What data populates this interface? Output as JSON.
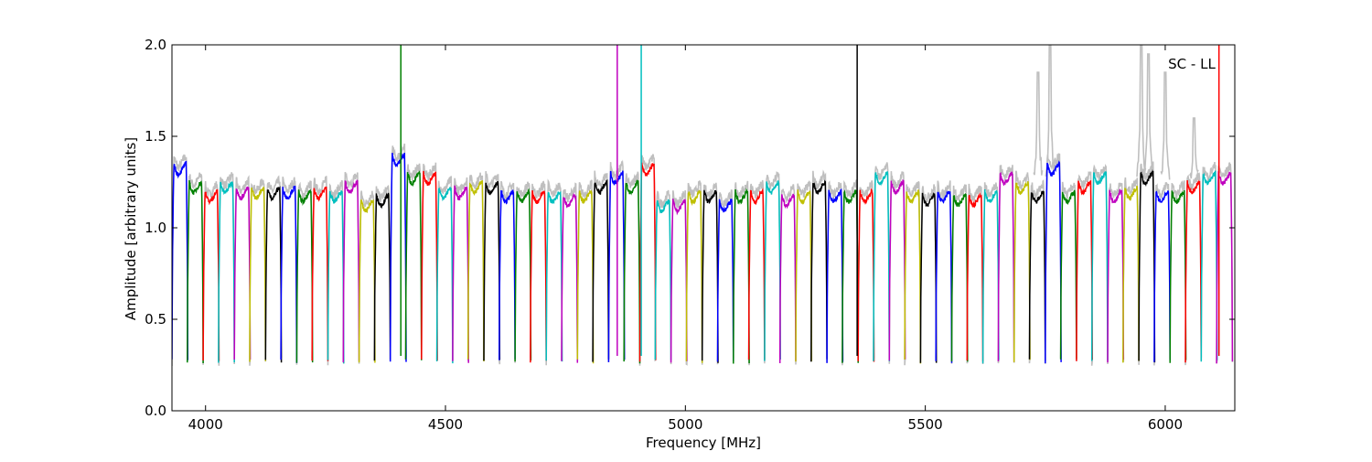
{
  "chart_data": {
    "type": "line",
    "annotation": "SC - LL",
    "xlabel": "Frequency [MHz]",
    "ylabel": "Amplitude [arbitrary units]",
    "xlim": [
      3930,
      6145
    ],
    "ylim": [
      0.0,
      2.0
    ],
    "x_ticks": [
      4000,
      4500,
      5000,
      5500,
      6000
    ],
    "y_ticks": [
      0.0,
      0.5,
      1.0,
      1.5,
      2.0
    ],
    "x_tick_labels": [
      "4000",
      "4500",
      "5000",
      "5500",
      "6000"
    ],
    "y_tick_labels": [
      "0.0",
      "0.5",
      "1.0",
      "1.5",
      "2.0"
    ],
    "grid": false,
    "legend": "none",
    "reference_color": "#bfbfbf",
    "palette": [
      "#0000ff",
      "#008000",
      "#ff0000",
      "#00bfbf",
      "#bf00bf",
      "#bfbf00",
      "#000000"
    ],
    "channel_width_mhz": 33,
    "channel_starts_mhz": [
      3930,
      3962,
      3995,
      4027,
      4060,
      4092,
      4125,
      4157,
      4190,
      4222,
      4255,
      4287,
      4320,
      4352,
      4385,
      4417,
      4450,
      4482,
      4515,
      4547,
      4580,
      4612,
      4645,
      4677,
      4710,
      4742,
      4775,
      4807,
      4840,
      4872,
      4905,
      4937,
      4970,
      5002,
      5035,
      5067,
      5100,
      5132,
      5165,
      5197,
      5230,
      5262,
      5295,
      5327,
      5360,
      5392,
      5425,
      5457,
      5490,
      5522,
      5555,
      5587,
      5620,
      5652,
      5685,
      5717,
      5750,
      5782,
      5815,
      5847,
      5880,
      5912,
      5945,
      5977,
      6010,
      6042,
      6075,
      6107
    ],
    "channel_plateau_levels": [
      1.35,
      1.25,
      1.2,
      1.25,
      1.22,
      1.22,
      1.22,
      1.22,
      1.2,
      1.22,
      1.2,
      1.25,
      1.15,
      1.18,
      1.4,
      1.3,
      1.3,
      1.22,
      1.22,
      1.25,
      1.25,
      1.2,
      1.2,
      1.2,
      1.2,
      1.18,
      1.2,
      1.25,
      1.3,
      1.25,
      1.35,
      1.15,
      1.15,
      1.2,
      1.2,
      1.15,
      1.2,
      1.2,
      1.25,
      1.18,
      1.2,
      1.25,
      1.2,
      1.2,
      1.2,
      1.3,
      1.25,
      1.2,
      1.18,
      1.2,
      1.18,
      1.18,
      1.2,
      1.3,
      1.25,
      1.2,
      1.35,
      1.2,
      1.25,
      1.3,
      1.2,
      1.22,
      1.3,
      1.2,
      1.2,
      1.25,
      1.3,
      1.3
    ],
    "channel_min_level": 0.27,
    "spikes": [
      {
        "x": 4407,
        "y_max": 2.0,
        "color": "#008000"
      },
      {
        "x": 4858,
        "y_max": 2.0,
        "color": "#bf00bf"
      },
      {
        "x": 4908,
        "y_max": 2.0,
        "color": "#00bfbf"
      },
      {
        "x": 5358,
        "y_max": 2.0,
        "color": "#000000"
      },
      {
        "x": 6112,
        "y_max": 2.0,
        "color": "#ff0000"
      }
    ],
    "reference_peaks": [
      {
        "x": 5735,
        "y": 1.85
      },
      {
        "x": 5760,
        "y": 2.0
      },
      {
        "x": 5950,
        "y": 2.0
      },
      {
        "x": 5965,
        "y": 1.95
      },
      {
        "x": 6000,
        "y": 1.85
      },
      {
        "x": 6060,
        "y": 1.6
      }
    ]
  }
}
